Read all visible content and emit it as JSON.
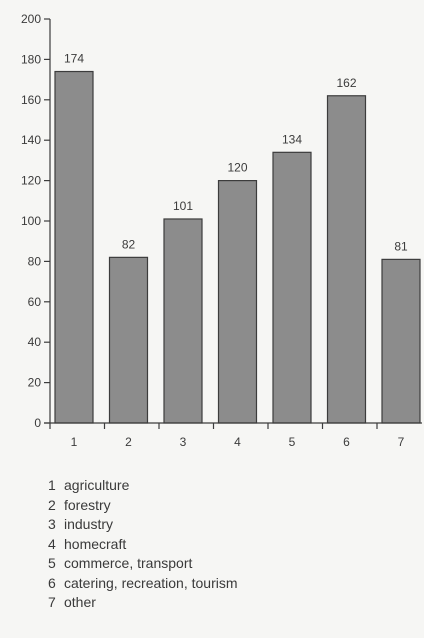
{
  "chart_data": {
    "type": "bar",
    "categories": [
      "1",
      "2",
      "3",
      "4",
      "5",
      "6",
      "7"
    ],
    "values": [
      174,
      82,
      101,
      120,
      134,
      162,
      81
    ],
    "title": "",
    "xlabel": "",
    "ylabel": "",
    "ylim": [
      0,
      200
    ],
    "yticks": [
      0,
      20,
      40,
      60,
      80,
      100,
      120,
      140,
      160,
      180,
      200
    ],
    "grid": false,
    "bar_color": "#8c8c8c",
    "legend": [
      {
        "num": "1",
        "label": "agriculture"
      },
      {
        "num": "2",
        "label": "forestry"
      },
      {
        "num": "3",
        "label": "industry"
      },
      {
        "num": "4",
        "label": "homecraft"
      },
      {
        "num": "5",
        "label": "commerce, transport"
      },
      {
        "num": "6",
        "label": "catering, recreation, tourism"
      },
      {
        "num": "7",
        "label": "other"
      }
    ]
  }
}
